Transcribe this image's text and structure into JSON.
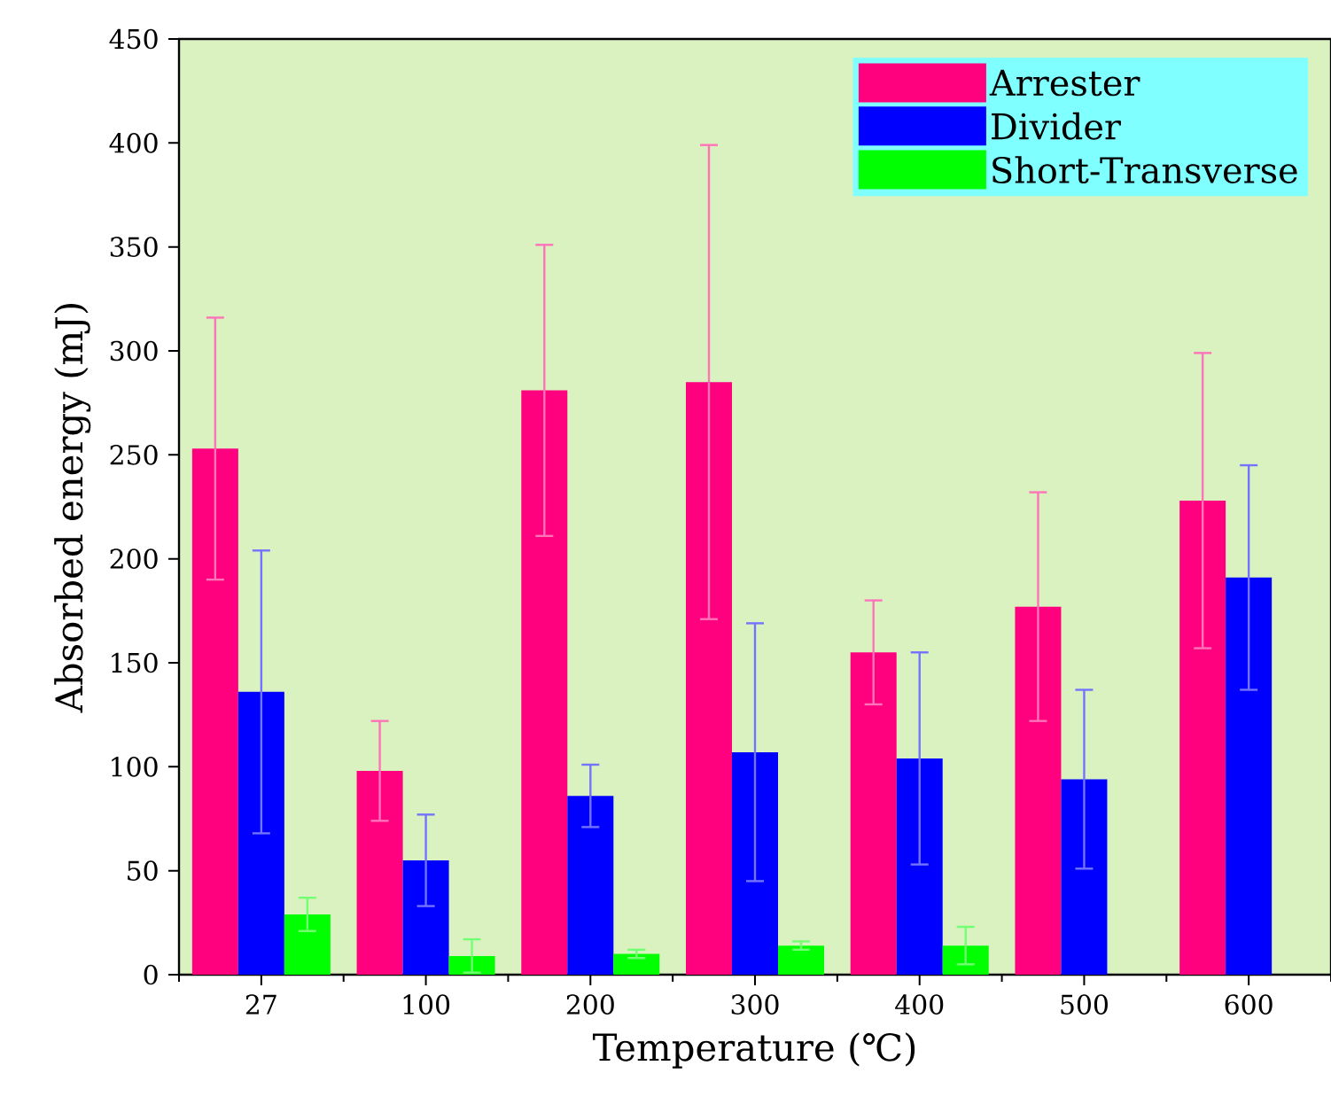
{
  "chart_data": {
    "type": "bar",
    "xlabel": "Temperature (℃)",
    "ylabel": "Absorbed energy (mJ)",
    "categories": [
      "27",
      "100",
      "200",
      "300",
      "400",
      "500",
      "600"
    ],
    "series": [
      {
        "name": "Arrester",
        "color": "#ff007f",
        "values": [
          253,
          98,
          281,
          285,
          155,
          177,
          228
        ],
        "errors": [
          63,
          24,
          70,
          114,
          25,
          55,
          71
        ]
      },
      {
        "name": "Divider",
        "color": "#0000ff",
        "values": [
          136,
          55,
          86,
          107,
          104,
          94,
          191
        ],
        "errors": [
          68,
          22,
          15,
          62,
          51,
          43,
          54
        ]
      },
      {
        "name": "Short-Transverse",
        "color": "#00ff00",
        "values": [
          29,
          9,
          10,
          14,
          14,
          null,
          null
        ],
        "errors": [
          8,
          8,
          2,
          2,
          9,
          null,
          null
        ]
      }
    ],
    "ylim": [
      0,
      450
    ],
    "yticks": [
      0,
      50,
      100,
      150,
      200,
      250,
      300,
      350,
      400,
      450
    ],
    "legend": "top right",
    "grid": false
  }
}
